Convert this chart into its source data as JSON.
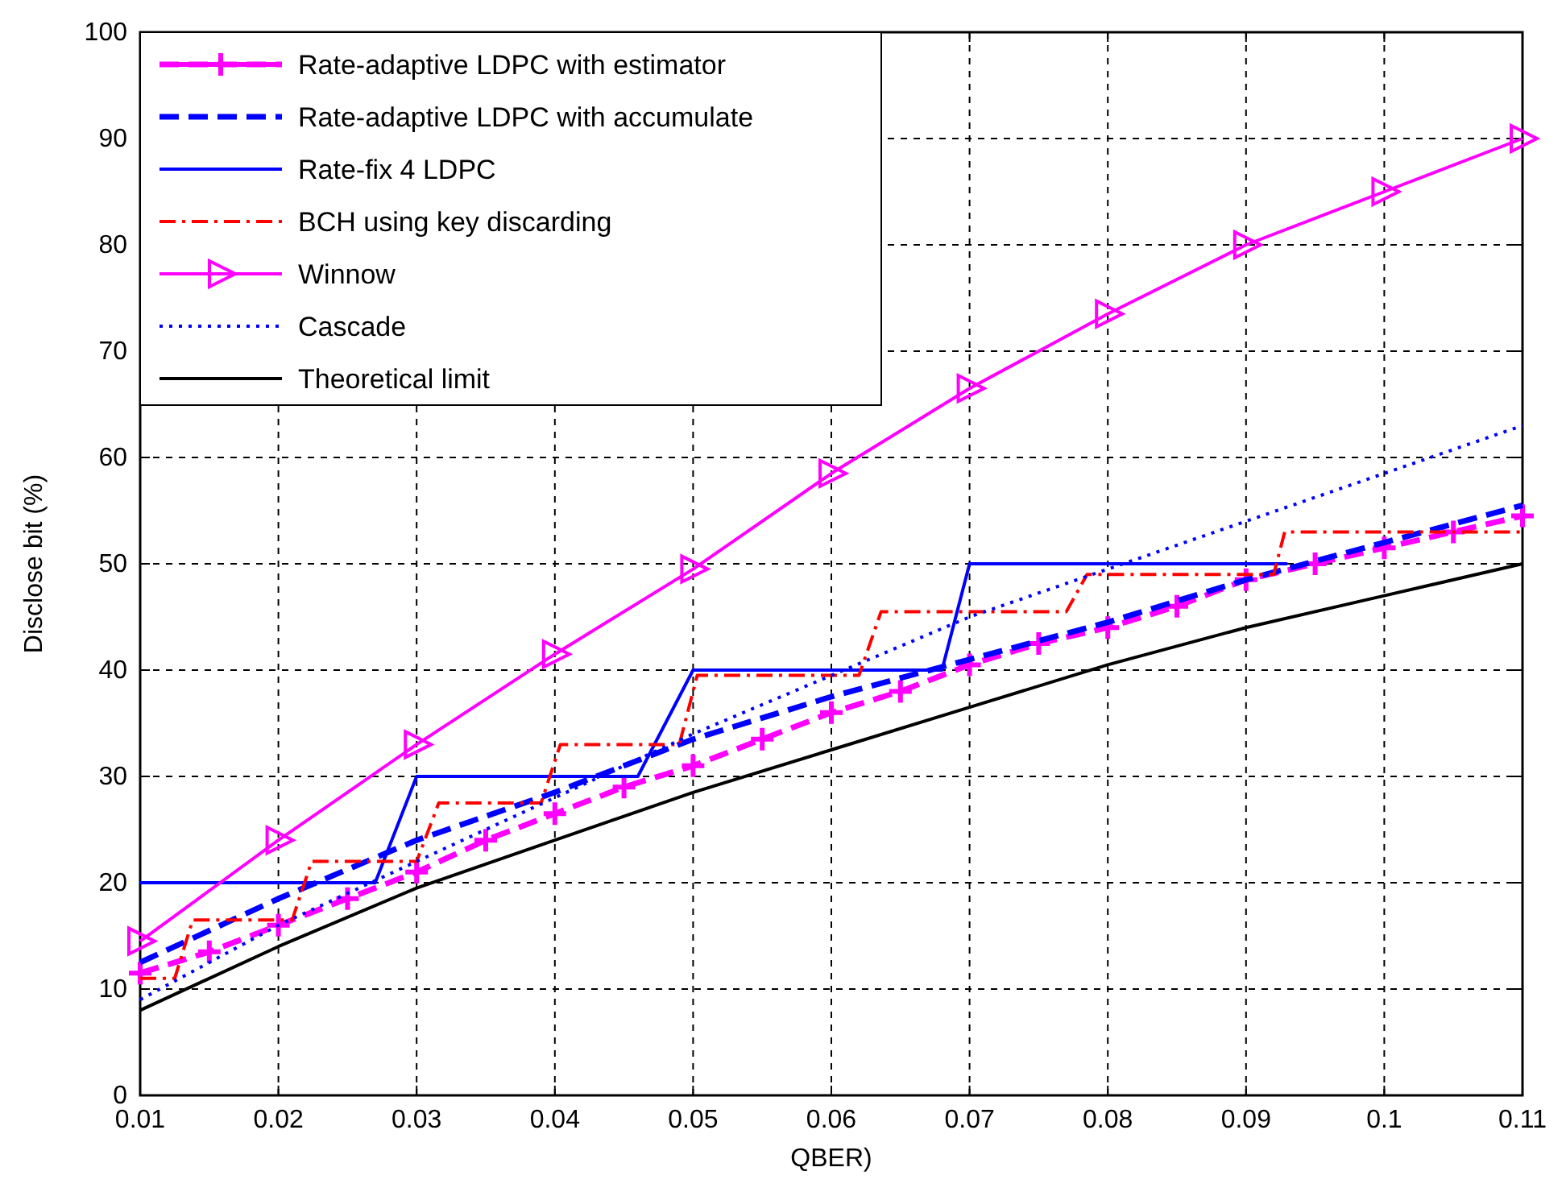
{
  "chart_data": {
    "type": "line",
    "xlabel": "QBER)",
    "ylabel": "Disclose bit (%)",
    "xlim": [
      0.01,
      0.11
    ],
    "ylim": [
      0,
      100
    ],
    "xticks": [
      0.01,
      0.02,
      0.03,
      0.04,
      0.05,
      0.06,
      0.07,
      0.08,
      0.09,
      0.1,
      0.11
    ],
    "yticks": [
      0,
      10,
      20,
      30,
      40,
      50,
      60,
      70,
      80,
      90,
      100
    ],
    "grid": true,
    "legend": "top left",
    "series": [
      {
        "name": "Rate-adaptive LDPC with estimator",
        "color": "#ff00ff",
        "line_style": "dashed",
        "marker": "cross",
        "x": [
          0.01,
          0.015,
          0.02,
          0.025,
          0.03,
          0.035,
          0.04,
          0.045,
          0.05,
          0.055,
          0.06,
          0.065,
          0.07,
          0.075,
          0.08,
          0.085,
          0.09,
          0.095,
          0.1,
          0.105,
          0.11
        ],
        "values": [
          11.5,
          13.5,
          16,
          18.5,
          21,
          24,
          26.5,
          29,
          31,
          33.5,
          36,
          38,
          40.5,
          42.5,
          44,
          46,
          48.5,
          50,
          51.5,
          53,
          54.5
        ]
      },
      {
        "name": "Rate-adaptive LDPC with accumulate",
        "color": "#0000ff",
        "line_style": "dashed",
        "marker": "none",
        "x": [
          0.01,
          0.02,
          0.03,
          0.04,
          0.05,
          0.06,
          0.07,
          0.08,
          0.09,
          0.1,
          0.11
        ],
        "values": [
          12.5,
          18.5,
          24,
          28.5,
          33.5,
          37.5,
          41,
          44.5,
          48.5,
          52,
          55.5
        ]
      },
      {
        "name": "Rate-fix 4 LDPC",
        "color": "#0000ff",
        "line_style": "solid",
        "marker": "none",
        "x": [
          0.01,
          0.027,
          0.03,
          0.046,
          0.05,
          0.068,
          0.07,
          0.093
        ],
        "values": [
          20,
          20,
          30,
          30,
          40,
          40,
          50,
          50
        ]
      },
      {
        "name": "BCH using key discarding",
        "color": "#ff0000",
        "line_style": "dashdot",
        "marker": "none",
        "x": [
          0.01,
          0.0125,
          0.0138,
          0.021,
          0.0224,
          0.03,
          0.0316,
          0.039,
          0.0404,
          0.049,
          0.0503,
          0.062,
          0.0636,
          0.077,
          0.0785,
          0.092,
          0.0928,
          0.11
        ],
        "values": [
          11,
          11,
          16.5,
          16.5,
          22,
          22,
          27.5,
          27.5,
          33,
          33,
          39.5,
          39.5,
          45.5,
          45.5,
          49,
          49,
          53,
          53
        ]
      },
      {
        "name": "Winnow",
        "color": "#ff00ff",
        "line_style": "solid",
        "marker": "triangle",
        "x": [
          0.01,
          0.02,
          0.03,
          0.04,
          0.05,
          0.06,
          0.07,
          0.08,
          0.09,
          0.1,
          0.11
        ],
        "values": [
          14.5,
          24,
          33,
          41.5,
          49.5,
          58.5,
          66.5,
          73.5,
          80,
          85,
          90
        ]
      },
      {
        "name": "Cascade",
        "color": "#0000ff",
        "line_style": "dotted",
        "marker": "none",
        "x": [
          0.01,
          0.02,
          0.03,
          0.04,
          0.05,
          0.06,
          0.07,
          0.08,
          0.09,
          0.1,
          0.11
        ],
        "values": [
          9,
          16,
          22,
          28,
          34,
          39.5,
          45,
          49.5,
          54,
          58.5,
          63
        ]
      },
      {
        "name": "Theoretical limit",
        "color": "#000000",
        "line_style": "solid",
        "marker": "none",
        "x": [
          0.01,
          0.02,
          0.03,
          0.04,
          0.05,
          0.06,
          0.07,
          0.08,
          0.09,
          0.1,
          0.11
        ],
        "values": [
          8,
          14,
          19.5,
          24,
          28.5,
          32.5,
          36.5,
          40.5,
          44,
          47,
          50
        ]
      }
    ]
  }
}
